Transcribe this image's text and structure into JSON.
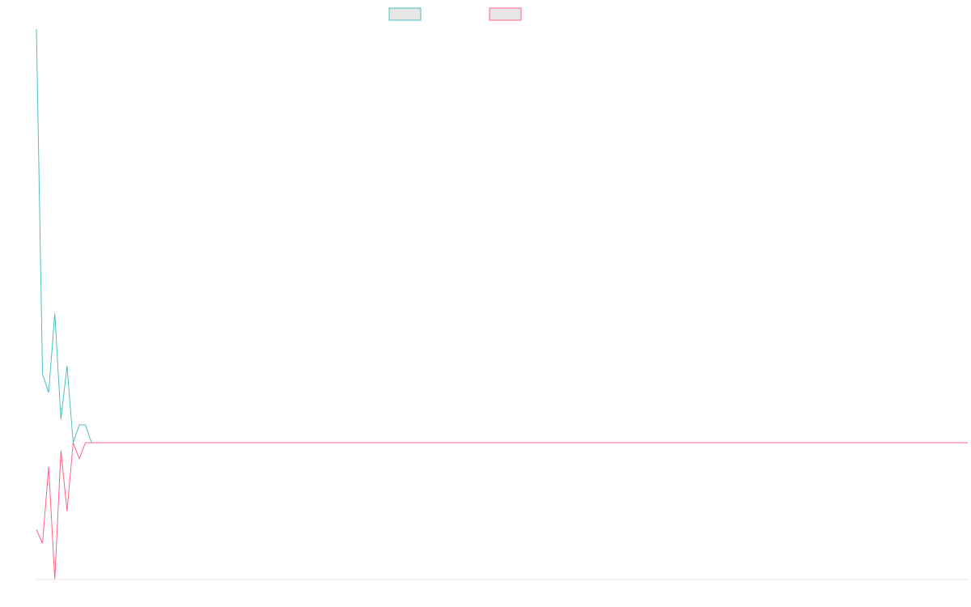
{
  "chart_data": {
    "type": "line",
    "title": "",
    "xlabel": "",
    "ylabel": "",
    "grid": false,
    "legend_position": "top-center",
    "x": [
      0,
      1,
      2,
      3,
      4,
      5,
      6,
      7,
      8,
      9,
      10,
      11,
      12,
      13,
      14,
      15,
      16,
      17,
      18,
      19,
      20,
      21,
      22,
      23,
      24,
      25,
      26,
      27,
      28,
      29,
      30,
      31,
      32,
      33,
      34,
      35,
      36,
      37,
      38,
      39,
      40,
      41,
      42,
      43,
      44,
      45,
      46,
      47,
      48,
      49,
      50,
      51,
      52,
      53,
      54,
      55,
      56,
      57,
      58,
      59,
      60,
      61,
      62,
      63,
      64,
      65,
      66,
      67,
      68,
      69,
      70,
      71,
      72,
      73,
      74,
      75,
      76,
      77,
      78,
      79,
      80,
      81,
      82,
      83,
      84,
      85,
      86,
      87,
      88,
      89,
      90,
      91,
      92,
      93,
      94,
      95,
      96,
      97,
      98,
      99,
      100,
      101,
      102,
      103,
      104,
      105,
      106,
      107,
      108,
      109,
      110,
      111,
      112,
      113,
      114,
      115,
      116,
      117,
      118,
      119,
      120,
      121,
      122,
      123,
      124,
      125,
      126,
      127,
      128,
      129,
      130,
      131,
      132,
      133,
      134,
      135,
      136,
      137,
      138,
      139,
      140,
      141,
      142,
      143,
      144,
      145,
      146,
      147,
      148,
      149,
      150,
      151,
      152
    ],
    "ylim": [
      -170,
      512
    ],
    "series": [
      {
        "color": "#4bc0c0",
        "values": [
          512,
          85,
          62,
          160,
          29,
          95,
          0,
          22,
          22,
          0,
          0,
          0,
          0,
          0,
          0,
          0,
          0,
          0,
          0,
          0,
          0,
          0,
          0,
          0,
          0,
          0,
          0,
          0,
          0,
          0,
          0,
          0,
          0,
          0,
          0,
          0,
          0,
          0,
          0,
          0,
          0,
          0,
          0,
          0,
          0,
          0,
          0,
          0,
          0,
          0,
          0,
          0,
          0,
          0,
          0,
          0,
          0,
          0,
          0,
          0,
          0,
          0,
          0,
          0,
          0,
          0,
          0,
          0,
          0,
          0,
          0,
          0,
          0,
          0,
          0,
          0,
          0,
          0,
          0,
          0,
          0,
          0,
          0,
          0,
          0,
          0,
          0,
          0,
          0,
          0,
          0,
          0,
          0,
          0,
          0,
          0,
          0,
          0,
          0,
          0,
          0,
          0,
          0,
          0,
          0,
          0,
          0,
          0,
          0,
          0,
          0,
          0,
          0,
          0,
          0,
          0,
          0,
          0,
          0,
          0,
          0,
          0,
          0,
          0,
          0,
          0,
          0,
          0,
          0,
          0,
          0,
          0,
          0,
          0,
          0,
          0,
          0,
          0,
          0,
          0,
          0,
          0,
          0,
          0,
          0,
          0,
          0,
          0,
          0,
          0,
          0,
          0,
          0
        ]
      },
      {
        "color": "#ff6384",
        "values": [
          -108,
          -125,
          -30,
          -170,
          -10,
          -85,
          0,
          -20,
          0,
          0,
          0,
          0,
          0,
          0,
          0,
          0,
          0,
          0,
          0,
          0,
          0,
          0,
          0,
          0,
          0,
          0,
          0,
          0,
          0,
          0,
          0,
          0,
          0,
          0,
          0,
          0,
          0,
          0,
          0,
          0,
          0,
          0,
          0,
          0,
          0,
          0,
          0,
          0,
          0,
          0,
          0,
          0,
          0,
          0,
          0,
          0,
          0,
          0,
          0,
          0,
          0,
          0,
          0,
          0,
          0,
          0,
          0,
          0,
          0,
          0,
          0,
          0,
          0,
          0,
          0,
          0,
          0,
          0,
          0,
          0,
          0,
          0,
          0,
          0,
          0,
          0,
          0,
          0,
          0,
          0,
          0,
          0,
          0,
          0,
          0,
          0,
          0,
          0,
          0,
          0,
          0,
          0,
          0,
          0,
          0,
          0,
          0,
          0,
          0,
          0,
          0,
          0,
          0,
          0,
          0,
          0,
          0,
          0,
          0,
          0,
          0,
          0,
          0,
          0,
          0,
          0,
          0,
          0,
          0,
          0,
          0,
          0,
          0,
          0,
          0,
          0,
          0,
          0,
          0,
          0,
          0,
          0,
          0,
          0,
          0,
          0,
          0,
          0,
          0,
          0,
          0,
          0,
          0
        ]
      }
    ]
  }
}
